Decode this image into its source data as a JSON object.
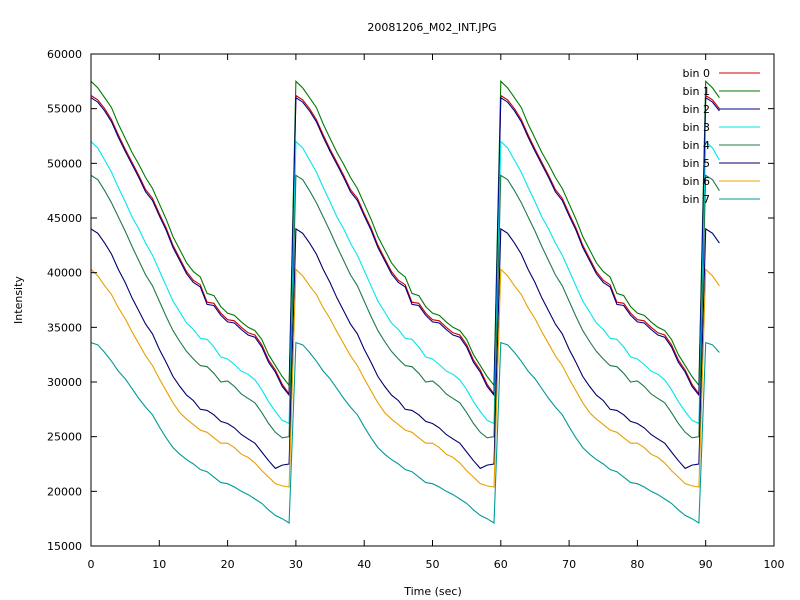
{
  "chart_data": {
    "type": "line",
    "title": "20081206_M02_INT.JPG",
    "xlabel": "Time (sec)",
    "ylabel": "Intensity",
    "xlim": [
      0,
      100
    ],
    "ylim": [
      15000,
      60000
    ],
    "x_ticks": [
      0,
      10,
      20,
      30,
      40,
      50,
      60,
      70,
      80,
      90,
      100
    ],
    "y_ticks": [
      15000,
      20000,
      25000,
      30000,
      35000,
      40000,
      45000,
      50000,
      55000,
      60000
    ],
    "grid": false,
    "legend_position": "top-right",
    "cycle": {
      "period_sec": 30,
      "x": [
        0,
        1,
        2,
        3,
        4,
        5,
        6,
        7,
        8,
        9,
        10,
        11,
        12,
        13,
        14,
        15,
        16,
        17,
        18,
        19,
        20,
        21,
        22,
        23,
        24,
        25,
        26,
        27,
        28,
        29
      ],
      "x_end": 92
    },
    "series": [
      {
        "name": "bin 0",
        "color": "#cc0000",
        "values": [
          56200,
          55800,
          55000,
          54000,
          52600,
          51300,
          50100,
          48900,
          47600,
          46800,
          45400,
          44100,
          42500,
          41300,
          40100,
          39300,
          38900,
          37300,
          37200,
          36300,
          35700,
          35600,
          35000,
          34500,
          34300,
          33400,
          32000,
          31100,
          29800,
          28900
        ]
      },
      {
        "name": "bin 1",
        "color": "#007a00",
        "values": [
          57500,
          56900,
          56000,
          55100,
          53600,
          52300,
          51000,
          49900,
          48700,
          47700,
          46300,
          44900,
          43300,
          42100,
          40900,
          40100,
          39600,
          38100,
          37900,
          36900,
          36300,
          36100,
          35500,
          35000,
          34700,
          33900,
          32500,
          31500,
          30500,
          29700
        ]
      },
      {
        "name": "bin 2",
        "color": "#00008b",
        "values": [
          56000,
          55600,
          54800,
          53800,
          52400,
          51100,
          49900,
          48700,
          47400,
          46600,
          45200,
          43900,
          42300,
          41100,
          39900,
          39100,
          38700,
          37100,
          37000,
          36100,
          35500,
          35400,
          34800,
          34300,
          34100,
          33200,
          31800,
          30900,
          29600,
          28800
        ]
      },
      {
        "name": "bin 3",
        "color": "#00e5ee",
        "values": [
          52000,
          51400,
          50300,
          49200,
          47800,
          46500,
          45100,
          44000,
          42700,
          41600,
          40200,
          38800,
          37400,
          36400,
          35400,
          34800,
          34000,
          33900,
          33200,
          32300,
          32100,
          31600,
          31000,
          30700,
          30200,
          29300,
          28200,
          27300,
          26500,
          26200
        ]
      },
      {
        "name": "bin 4",
        "color": "#217a4a",
        "values": [
          48900,
          48500,
          47500,
          46400,
          45100,
          43800,
          42400,
          41100,
          39800,
          38800,
          37400,
          36000,
          34700,
          33700,
          32800,
          32100,
          31500,
          31400,
          30800,
          30000,
          30100,
          29600,
          28900,
          28500,
          28100,
          27200,
          26200,
          25400,
          24900,
          25000
        ]
      },
      {
        "name": "bin 5",
        "color": "#00006e",
        "values": [
          44000,
          43600,
          42700,
          41700,
          40300,
          39100,
          37700,
          36500,
          35300,
          34400,
          33000,
          31800,
          30500,
          29600,
          28800,
          28300,
          27500,
          27400,
          27000,
          26400,
          26200,
          25800,
          25200,
          24800,
          24400,
          23600,
          22800,
          22100,
          22400,
          22500
        ]
      },
      {
        "name": "bin 6",
        "color": "#e8a000",
        "values": [
          40300,
          39700,
          38800,
          38000,
          36800,
          35800,
          34600,
          33500,
          32400,
          31500,
          30300,
          29200,
          28100,
          27200,
          26600,
          26100,
          25600,
          25400,
          24900,
          24400,
          24400,
          24000,
          23400,
          23100,
          22600,
          21900,
          21300,
          20700,
          20500,
          20400
        ]
      },
      {
        "name": "bin 7",
        "color": "#009a9a",
        "values": [
          33600,
          33400,
          32700,
          31900,
          31000,
          30300,
          29400,
          28500,
          27700,
          27000,
          25900,
          24900,
          24000,
          23400,
          22900,
          22500,
          22000,
          21800,
          21300,
          20800,
          20700,
          20400,
          20000,
          19700,
          19300,
          18900,
          18300,
          17800,
          17500,
          17100
        ]
      }
    ]
  }
}
